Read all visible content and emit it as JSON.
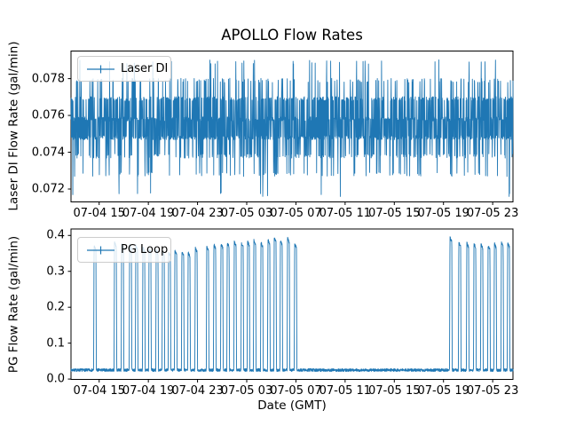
{
  "figure": {
    "background": "#ffffff",
    "line_color": "#1f77b4",
    "spine_color": "#000000",
    "legend_border_color": "#cccccc",
    "text_color": "#000000"
  },
  "xticks": {
    "labels": [
      "07-04 15",
      "07-04 19",
      "07-04 23",
      "07-05 03",
      "07-05 07",
      "07-05 11",
      "07-05 15",
      "07-05 19",
      "07-05 23"
    ],
    "hours": [
      15,
      19,
      23,
      27,
      31,
      35,
      39,
      43,
      47
    ]
  },
  "chart_data": [
    {
      "type": "line",
      "title": "APOLLO Flow Rates",
      "legend": "Laser DI",
      "ylabel": "Laser DI Flow Rate (gal/min)",
      "yticks": [
        "0.072",
        "0.074",
        "0.076",
        "0.078"
      ],
      "ytick_values": [
        0.072,
        0.074,
        0.076,
        0.078
      ],
      "ylim": [
        0.0713,
        0.0795
      ],
      "xlim_hours": [
        12.71,
        48.65
      ],
      "grid": false,
      "legend_position": "upper left",
      "signal": {
        "kind": "quantized_noise",
        "n_points": 2200,
        "levels": [
          0.0717,
          0.0728,
          0.0738,
          0.0748,
          0.0758,
          0.0769,
          0.0779,
          0.0789
        ],
        "weights": [
          0.008,
          0.04,
          0.1,
          0.28,
          0.28,
          0.2,
          0.07,
          0.015
        ],
        "jitter": 0.00012,
        "seed": 42
      }
    },
    {
      "type": "line",
      "legend": "PG Loop",
      "ylabel": "PG Flow Rate (gal/min)",
      "xlabel": "Date (GMT)",
      "yticks": [
        "0.0",
        "0.1",
        "0.2",
        "0.3",
        "0.4"
      ],
      "ytick_values": [
        0.0,
        0.1,
        0.2,
        0.3,
        0.4
      ],
      "ylim": [
        -0.001,
        0.418
      ],
      "xlim_hours": [
        12.71,
        48.65
      ],
      "grid": false,
      "legend_position": "upper left",
      "signal": {
        "kind": "baseline_with_pulses",
        "n_points": 3000,
        "baseline_mean": 0.025,
        "baseline_noise": 0.004,
        "pulse_width_hours": 0.22,
        "pulse_edge_hours": 0.035,
        "pulse_top_droop": 0.018,
        "pulse_top_noise": 0.008,
        "seed": 7,
        "pulses": [
          [
            14.66,
            0.373
          ],
          [
            16.32,
            0.383
          ],
          [
            16.9,
            0.38
          ],
          [
            17.55,
            0.377
          ],
          [
            18.05,
            0.374
          ],
          [
            18.63,
            0.37
          ],
          [
            19.13,
            0.366
          ],
          [
            19.71,
            0.363
          ],
          [
            20.22,
            0.36
          ],
          [
            20.72,
            0.357
          ],
          [
            21.23,
            0.362
          ],
          [
            21.8,
            0.358
          ],
          [
            22.31,
            0.355
          ],
          [
            22.89,
            0.368
          ],
          [
            23.82,
            0.372
          ],
          [
            24.4,
            0.378
          ],
          [
            24.98,
            0.38
          ],
          [
            25.49,
            0.383
          ],
          [
            26.06,
            0.385
          ],
          [
            26.64,
            0.382
          ],
          [
            27.14,
            0.386
          ],
          [
            27.65,
            0.39
          ],
          [
            28.23,
            0.383
          ],
          [
            28.8,
            0.392
          ],
          [
            29.31,
            0.398
          ],
          [
            29.81,
            0.388
          ],
          [
            30.39,
            0.395
          ],
          [
            30.97,
            0.38
          ],
          [
            43.6,
            0.397
          ],
          [
            44.32,
            0.385
          ],
          [
            44.97,
            0.382
          ],
          [
            45.55,
            0.38
          ],
          [
            46.12,
            0.378
          ],
          [
            46.7,
            0.375
          ],
          [
            47.21,
            0.38
          ],
          [
            47.78,
            0.385
          ],
          [
            48.29,
            0.382
          ]
        ]
      }
    }
  ]
}
